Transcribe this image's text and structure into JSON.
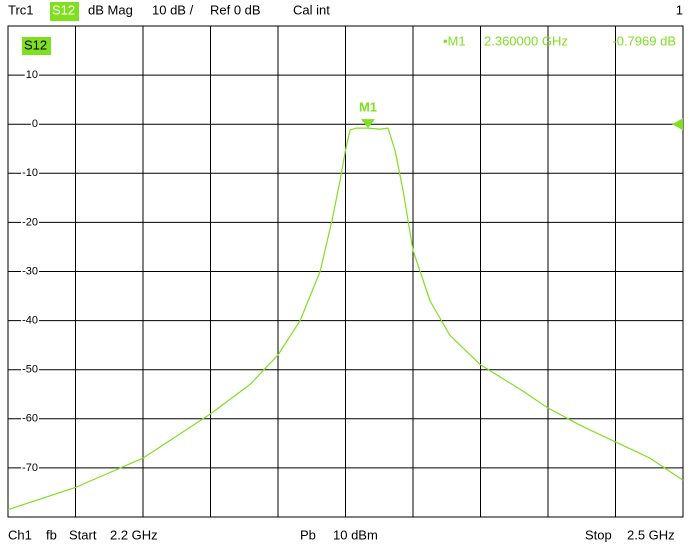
{
  "header": {
    "trace": "Trc1",
    "param": "S12",
    "format": "dB Mag",
    "scale": "10 dB /",
    "ref": "Ref 0 dB",
    "cal": "Cal int",
    "window": "1"
  },
  "footer": {
    "channel": "Ch1",
    "mode": "fb",
    "start_label": "Start",
    "start": "2.2 GHz",
    "power_label": "Pb",
    "power": "10 dBm",
    "stop_label": "Stop",
    "stop": "2.5 GHz"
  },
  "chart_data": {
    "type": "line",
    "trace_label": "S12",
    "x": [
      2.2,
      2.23,
      2.26,
      2.29,
      2.3076,
      2.32,
      2.3298,
      2.3387,
      2.344,
      2.3476,
      2.35,
      2.352,
      2.3547,
      2.36,
      2.3653,
      2.3689,
      2.372,
      2.3756,
      2.38,
      2.3876,
      2.3964,
      2.41,
      2.4276,
      2.44,
      2.4542,
      2.47,
      2.4853,
      2.5
    ],
    "series": [
      {
        "name": "S12",
        "color": "#7fe020",
        "values": [
          -78.5,
          -74,
          -68,
          -59,
          -53,
          -47,
          -40,
          -30,
          -19.6,
          -11.4,
          -5.3,
          -1.2,
          -0.8,
          -0.8,
          -1,
          -0.8,
          -5.3,
          -13.5,
          -25.7,
          -36,
          -43,
          -49,
          -54,
          -57.8,
          -61.3,
          -64.7,
          -68,
          -72.5
        ]
      }
    ],
    "xlim": [
      2.2,
      2.5
    ],
    "xticks": [
      2.2,
      2.23,
      2.26,
      2.29,
      2.32,
      2.35,
      2.38,
      2.41,
      2.44,
      2.47,
      2.5
    ],
    "ylim": [
      -80,
      20
    ],
    "yticks": [
      -70,
      -60,
      -50,
      -40,
      -30,
      -20,
      -10,
      0,
      10
    ],
    "grid": true,
    "markers": [
      {
        "label": "M1",
        "readout_label": "•M1",
        "x": 2.36,
        "y": -0.7969,
        "x_label": "2.360000 GHz",
        "y_label": "-0.7969 dB"
      }
    ]
  }
}
